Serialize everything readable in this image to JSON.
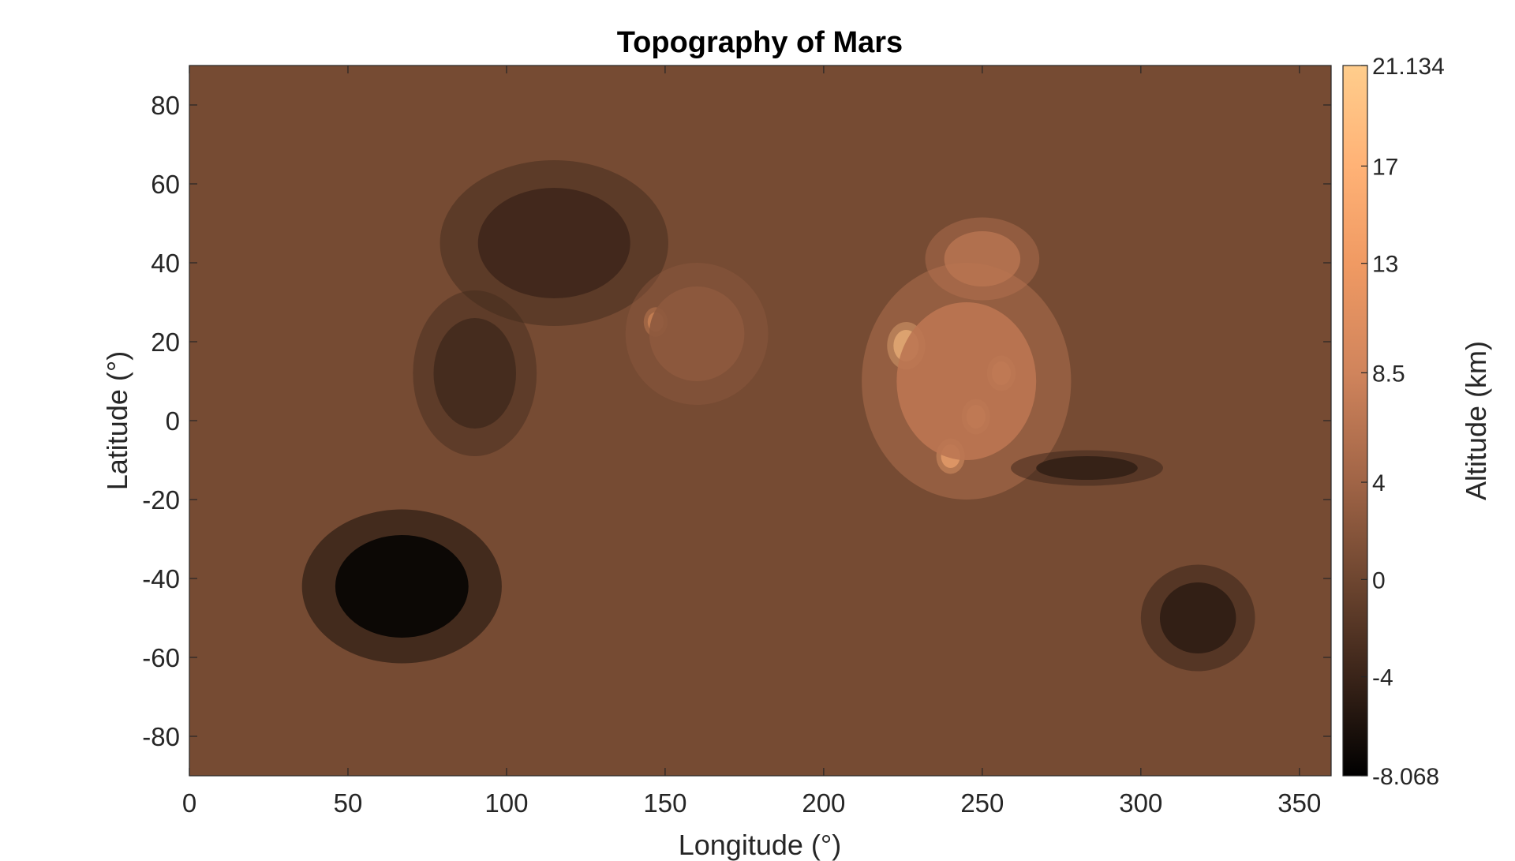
{
  "chart_data": {
    "type": "heatmap",
    "title": "Topography of Mars",
    "xlabel": "Longitude (°)",
    "ylabel": "Latitude (°)",
    "xlim": [
      0,
      360
    ],
    "ylim": [
      -90,
      90
    ],
    "xticks": [
      0,
      50,
      100,
      150,
      200,
      250,
      300,
      350
    ],
    "yticks": [
      80,
      60,
      40,
      20,
      0,
      -20,
      -40,
      -60,
      -80
    ],
    "grid": false,
    "colorbar": {
      "label": "Altitude (km)",
      "limits": [
        -8.068,
        21.134
      ],
      "ticks": [
        {
          "value": 21.134,
          "label": "21.134"
        },
        {
          "value": 17,
          "label": "17"
        },
        {
          "value": 13,
          "label": "13"
        },
        {
          "value": 8.5,
          "label": "8.5"
        },
        {
          "value": 4,
          "label": "4"
        },
        {
          "value": 0,
          "label": "0"
        },
        {
          "value": -4,
          "label": "-4"
        },
        {
          "value": -8.068,
          "label": "-8.068"
        }
      ],
      "colormap_stops": [
        {
          "value": -8.068,
          "color": "#000000"
        },
        {
          "value": -4,
          "color": "#3a2419"
        },
        {
          "value": 0,
          "color": "#6e4630"
        },
        {
          "value": 4,
          "color": "#a06446"
        },
        {
          "value": 8.5,
          "color": "#d0845c"
        },
        {
          "value": 13,
          "color": "#f09a63"
        },
        {
          "value": 17,
          "color": "#ffb276"
        },
        {
          "value": 21.134,
          "color": "#ffcd8c"
        }
      ]
    },
    "features": [
      {
        "lon": 67,
        "lat": -42,
        "rx": 21,
        "ry": 13,
        "altitude": -7.6
      },
      {
        "lon": 318,
        "lat": -50,
        "rx": 12,
        "ry": 9,
        "altitude": -4.8
      },
      {
        "lon": 90,
        "lat": 12,
        "rx": 13,
        "ry": 14,
        "altitude": -3.3
      },
      {
        "lon": 115,
        "lat": 45,
        "rx": 24,
        "ry": 14,
        "altitude": -3.6
      },
      {
        "lon": 226,
        "lat": 19,
        "rx": 4,
        "ry": 4,
        "altitude": 21.1
      },
      {
        "lon": 256,
        "lat": 12,
        "rx": 3,
        "ry": 3,
        "altitude": 18.2
      },
      {
        "lon": 248,
        "lat": 1,
        "rx": 3,
        "ry": 3,
        "altitude": 17.0
      },
      {
        "lon": 240,
        "lat": -9,
        "rx": 3,
        "ry": 3,
        "altitude": 17.5
      },
      {
        "lon": 147,
        "lat": 25,
        "rx": 2.5,
        "ry": 2.5,
        "altitude": 13.5
      },
      {
        "lon": 250,
        "lat": 41,
        "rx": 12,
        "ry": 7,
        "altitude": 6.0
      },
      {
        "lon": 245,
        "lat": 10,
        "rx": 22,
        "ry": 20,
        "altitude": 6.5
      },
      {
        "lon": 160,
        "lat": 22,
        "rx": 15,
        "ry": 12,
        "altitude": 2.5
      },
      {
        "lon": 283,
        "lat": -12,
        "rx": 16,
        "ry": 3,
        "altitude": -4.5
      }
    ]
  }
}
